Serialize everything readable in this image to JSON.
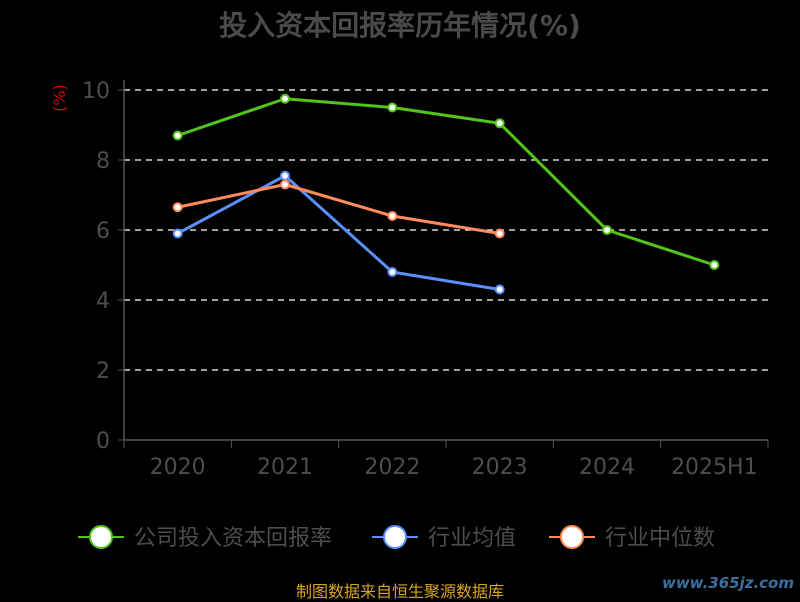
{
  "chart_data": {
    "type": "line",
    "title": "投入资本回报率历年情况(%)",
    "ylabel": "(%)",
    "categories": [
      "2020",
      "2021",
      "2022",
      "2023",
      "2024",
      "2025H1"
    ],
    "ylim": [
      0,
      10
    ],
    "yticks": [
      "0",
      "2",
      "4",
      "6",
      "8",
      "10"
    ],
    "grid": true,
    "legend_position": "bottom",
    "series": [
      {
        "name": "公司投入资本回报率",
        "color": "#52c41a",
        "values": [
          8.7,
          9.75,
          9.5,
          9.05,
          6.0,
          5.0
        ]
      },
      {
        "name": "行业均值",
        "color": "#5b8ff9",
        "values": [
          5.9,
          7.55,
          4.8,
          4.3,
          null,
          null
        ]
      },
      {
        "name": "行业中位数",
        "color": "#ff8c5a",
        "values": [
          6.65,
          7.3,
          6.4,
          5.9,
          null,
          null
        ]
      }
    ]
  },
  "footer": {
    "source": "制图数据来自恒生聚源数据库",
    "watermark": "www.365jz.com"
  }
}
